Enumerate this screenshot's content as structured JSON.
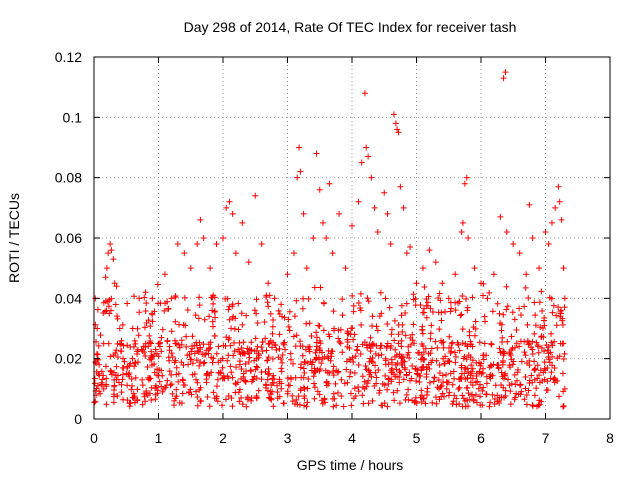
{
  "chart_data": {
    "type": "scatter",
    "title": "Day 298 of 2014, Rate Of TEC Index for receiver tash",
    "xlabel": "GPS time / hours",
    "ylabel": "ROTI / TECUs",
    "xlim": [
      0,
      8
    ],
    "ylim": [
      0,
      0.12
    ],
    "xticks": [
      0,
      1,
      2,
      3,
      4,
      5,
      6,
      7,
      8
    ],
    "yticks": [
      0,
      0.02,
      0.04,
      0.06,
      0.08,
      0.1,
      0.12
    ],
    "xtick_labels": [
      "0",
      "1",
      "2",
      "3",
      "4",
      "5",
      "6",
      "7",
      "8"
    ],
    "ytick_labels": [
      "0",
      "0.02",
      "0.04",
      "0.06",
      "0.08",
      "0.1",
      "0.12"
    ],
    "grid": true,
    "marker": "+",
    "color": "#ff0000",
    "x_data_extent": [
      0,
      7.3
    ],
    "series": [
      {
        "name": "ROTI",
        "points": [
          [
            0.02,
            0.04
          ],
          [
            0.05,
            0.03
          ],
          [
            0.08,
            0.018
          ],
          [
            0.12,
            0.012
          ],
          [
            0.15,
            0.025
          ],
          [
            0.18,
            0.047
          ],
          [
            0.2,
            0.05
          ],
          [
            0.22,
            0.055
          ],
          [
            0.25,
            0.058
          ],
          [
            0.27,
            0.056
          ],
          [
            0.3,
            0.053
          ],
          [
            0.32,
            0.045
          ],
          [
            0.35,
            0.044
          ],
          [
            0.4,
            0.03
          ],
          [
            0.45,
            0.02
          ],
          [
            0.5,
            0.015
          ],
          [
            0.6,
            0.03
          ],
          [
            0.7,
            0.04
          ],
          [
            0.8,
            0.042
          ],
          [
            0.9,
            0.035
          ],
          [
            1.0,
            0.025
          ],
          [
            1.1,
            0.048
          ],
          [
            1.2,
            0.04
          ],
          [
            1.3,
            0.058
          ],
          [
            1.4,
            0.055
          ],
          [
            1.5,
            0.05
          ],
          [
            1.6,
            0.058
          ],
          [
            1.65,
            0.066
          ],
          [
            1.7,
            0.06
          ],
          [
            1.8,
            0.05
          ],
          [
            1.9,
            0.058
          ],
          [
            2.0,
            0.06
          ],
          [
            2.05,
            0.07
          ],
          [
            2.1,
            0.072
          ],
          [
            2.15,
            0.068
          ],
          [
            2.2,
            0.055
          ],
          [
            2.3,
            0.065
          ],
          [
            2.4,
            0.052
          ],
          [
            2.5,
            0.074
          ],
          [
            2.6,
            0.058
          ],
          [
            2.7,
            0.045
          ],
          [
            2.8,
            0.04
          ],
          [
            2.9,
            0.038
          ],
          [
            3.0,
            0.048
          ],
          [
            3.1,
            0.055
          ],
          [
            3.15,
            0.08
          ],
          [
            3.18,
            0.09
          ],
          [
            3.2,
            0.082
          ],
          [
            3.25,
            0.068
          ],
          [
            3.3,
            0.05
          ],
          [
            3.4,
            0.06
          ],
          [
            3.45,
            0.088
          ],
          [
            3.5,
            0.076
          ],
          [
            3.55,
            0.065
          ],
          [
            3.6,
            0.06
          ],
          [
            3.65,
            0.078
          ],
          [
            3.7,
            0.055
          ],
          [
            3.8,
            0.068
          ],
          [
            3.9,
            0.05
          ],
          [
            4.0,
            0.064
          ],
          [
            4.1,
            0.072
          ],
          [
            4.15,
            0.085
          ],
          [
            4.2,
            0.108
          ],
          [
            4.22,
            0.09
          ],
          [
            4.25,
            0.087
          ],
          [
            4.3,
            0.08
          ],
          [
            4.35,
            0.07
          ],
          [
            4.4,
            0.062
          ],
          [
            4.5,
            0.075
          ],
          [
            4.55,
            0.068
          ],
          [
            4.6,
            0.058
          ],
          [
            4.65,
            0.101
          ],
          [
            4.68,
            0.098
          ],
          [
            4.7,
            0.096
          ],
          [
            4.72,
            0.095
          ],
          [
            4.75,
            0.077
          ],
          [
            4.8,
            0.07
          ],
          [
            4.85,
            0.055
          ],
          [
            4.9,
            0.057
          ],
          [
            5.0,
            0.045
          ],
          [
            5.1,
            0.05
          ],
          [
            5.2,
            0.056
          ],
          [
            5.3,
            0.052
          ],
          [
            5.4,
            0.045
          ],
          [
            5.5,
            0.04
          ],
          [
            5.6,
            0.048
          ],
          [
            5.7,
            0.062
          ],
          [
            5.72,
            0.065
          ],
          [
            5.75,
            0.078
          ],
          [
            5.78,
            0.08
          ],
          [
            5.8,
            0.06
          ],
          [
            5.9,
            0.05
          ],
          [
            6.0,
            0.045
          ],
          [
            6.1,
            0.04
          ],
          [
            6.2,
            0.048
          ],
          [
            6.3,
            0.067
          ],
          [
            6.35,
            0.113
          ],
          [
            6.38,
            0.115
          ],
          [
            6.4,
            0.062
          ],
          [
            6.5,
            0.058
          ],
          [
            6.6,
            0.055
          ],
          [
            6.7,
            0.048
          ],
          [
            6.75,
            0.071
          ],
          [
            6.8,
            0.06
          ],
          [
            6.9,
            0.05
          ],
          [
            7.0,
            0.062
          ],
          [
            7.05,
            0.058
          ],
          [
            7.1,
            0.065
          ],
          [
            7.15,
            0.07
          ],
          [
            7.2,
            0.077
          ],
          [
            7.22,
            0.072
          ],
          [
            7.25,
            0.066
          ],
          [
            7.28,
            0.05
          ],
          [
            7.3,
            0.04
          ],
          [
            7.3,
            0.01
          ]
        ],
        "dense_band": {
          "x_range": [
            0,
            7.3
          ],
          "y_range": [
            0.004,
            0.045
          ],
          "typical_center": 0.02,
          "approx_points": 1400
        }
      }
    ]
  }
}
